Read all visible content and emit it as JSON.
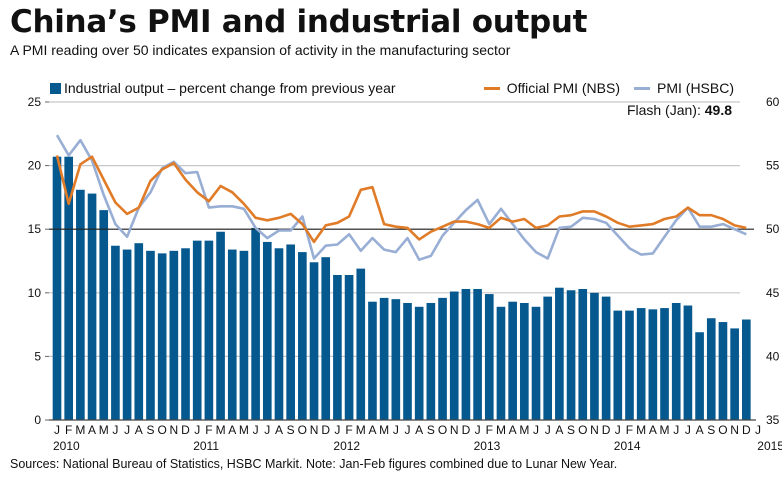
{
  "chart_data": {
    "type": "bar",
    "title": "China’s PMI and industrial output",
    "subtitle": "A PMI reading over 50 indicates expansion of activity in the manufacturing sector",
    "footer": "Sources: National Bureau of Statistics, HSBC Markit. Note: Jan-Feb figures combined due to Lunar New Year.",
    "flash": {
      "label": "Flash (Jan): ",
      "value": "49.8"
    },
    "left_axis": {
      "range": [
        0,
        25
      ],
      "ticks": [
        "0",
        "5",
        "10",
        "15",
        "20",
        "25"
      ]
    },
    "right_axis": {
      "range": [
        35,
        60
      ],
      "ticks": [
        "35",
        "40",
        "45",
        "50",
        "55",
        "60"
      ]
    },
    "reference_line_right": 50,
    "month_labels": [
      "J",
      "F",
      "M",
      "A",
      "M",
      "J",
      "J",
      "A",
      "S",
      "O",
      "N",
      "D",
      "J",
      "F",
      "M",
      "A",
      "M",
      "J",
      "J",
      "A",
      "S",
      "O",
      "N",
      "D",
      "J",
      "F",
      "M",
      "A",
      "M",
      "J",
      "J",
      "A",
      "S",
      "O",
      "N",
      "D",
      "J",
      "F",
      "M",
      "A",
      "M",
      "J",
      "J",
      "A",
      "S",
      "O",
      "N",
      "D",
      "J",
      "F",
      "M",
      "A",
      "M",
      "J",
      "J",
      "A",
      "S",
      "O",
      "N",
      "D",
      "J"
    ],
    "year_labels": [
      {
        "label": "2010",
        "index": 0
      },
      {
        "label": "2011",
        "index": 12
      },
      {
        "label": "2012",
        "index": 24
      },
      {
        "label": "2013",
        "index": 36
      },
      {
        "label": "2014",
        "index": 48
      },
      {
        "label": "2015",
        "index": 60
      }
    ],
    "series": [
      {
        "name": "Industrial output – percent change from previous year",
        "kind": "bar",
        "axis": "left",
        "color": "#06598f",
        "values": [
          20.7,
          20.7,
          18.1,
          17.8,
          16.5,
          13.7,
          13.4,
          13.9,
          13.3,
          13.1,
          13.3,
          13.5,
          14.1,
          14.1,
          14.8,
          13.4,
          13.3,
          15.1,
          14.0,
          13.5,
          13.8,
          13.2,
          12.4,
          12.8,
          11.4,
          11.4,
          11.9,
          9.3,
          9.6,
          9.5,
          9.2,
          8.9,
          9.2,
          9.6,
          10.1,
          10.3,
          10.3,
          9.9,
          8.9,
          9.3,
          9.2,
          8.9,
          9.7,
          10.4,
          10.2,
          10.3,
          10.0,
          9.7,
          8.6,
          8.6,
          8.8,
          8.7,
          8.8,
          9.2,
          9.0,
          6.9,
          8.0,
          7.7,
          7.2,
          7.9
        ]
      },
      {
        "name": "Official PMI (NBS)",
        "kind": "line",
        "axis": "right",
        "color": "#e07b28",
        "values": [
          55.8,
          52.0,
          55.1,
          55.7,
          53.9,
          52.1,
          51.2,
          51.7,
          53.8,
          54.7,
          55.2,
          53.9,
          52.9,
          52.2,
          53.4,
          52.9,
          52.0,
          50.9,
          50.7,
          50.9,
          51.2,
          50.4,
          49.0,
          50.3,
          50.5,
          51.0,
          53.1,
          53.3,
          50.4,
          50.2,
          50.1,
          49.2,
          49.8,
          50.2,
          50.6,
          50.6,
          50.4,
          50.1,
          50.9,
          50.6,
          50.8,
          50.1,
          50.3,
          51.0,
          51.1,
          51.4,
          51.4,
          51.0,
          50.5,
          50.2,
          50.3,
          50.4,
          50.8,
          51.0,
          51.7,
          51.1,
          51.1,
          50.8,
          50.3,
          50.1
        ]
      },
      {
        "name": "PMI (HSBC)",
        "kind": "line",
        "axis": "right",
        "color": "#98aed4",
        "values": [
          57.4,
          55.8,
          57.0,
          55.4,
          52.7,
          50.4,
          49.4,
          51.7,
          52.9,
          54.8,
          55.3,
          54.4,
          54.5,
          51.7,
          51.8,
          51.8,
          51.6,
          50.1,
          49.3,
          49.9,
          49.9,
          51.0,
          47.7,
          48.7,
          48.8,
          49.6,
          48.3,
          49.3,
          48.4,
          48.2,
          49.3,
          47.6,
          47.9,
          49.5,
          50.5,
          51.5,
          52.3,
          50.4,
          51.6,
          50.4,
          49.2,
          48.2,
          47.7,
          50.1,
          50.2,
          50.9,
          50.8,
          50.5,
          49.5,
          48.5,
          48.0,
          48.1,
          49.4,
          50.7,
          51.7,
          50.2,
          50.2,
          50.4,
          50.0,
          49.6
        ]
      }
    ]
  }
}
